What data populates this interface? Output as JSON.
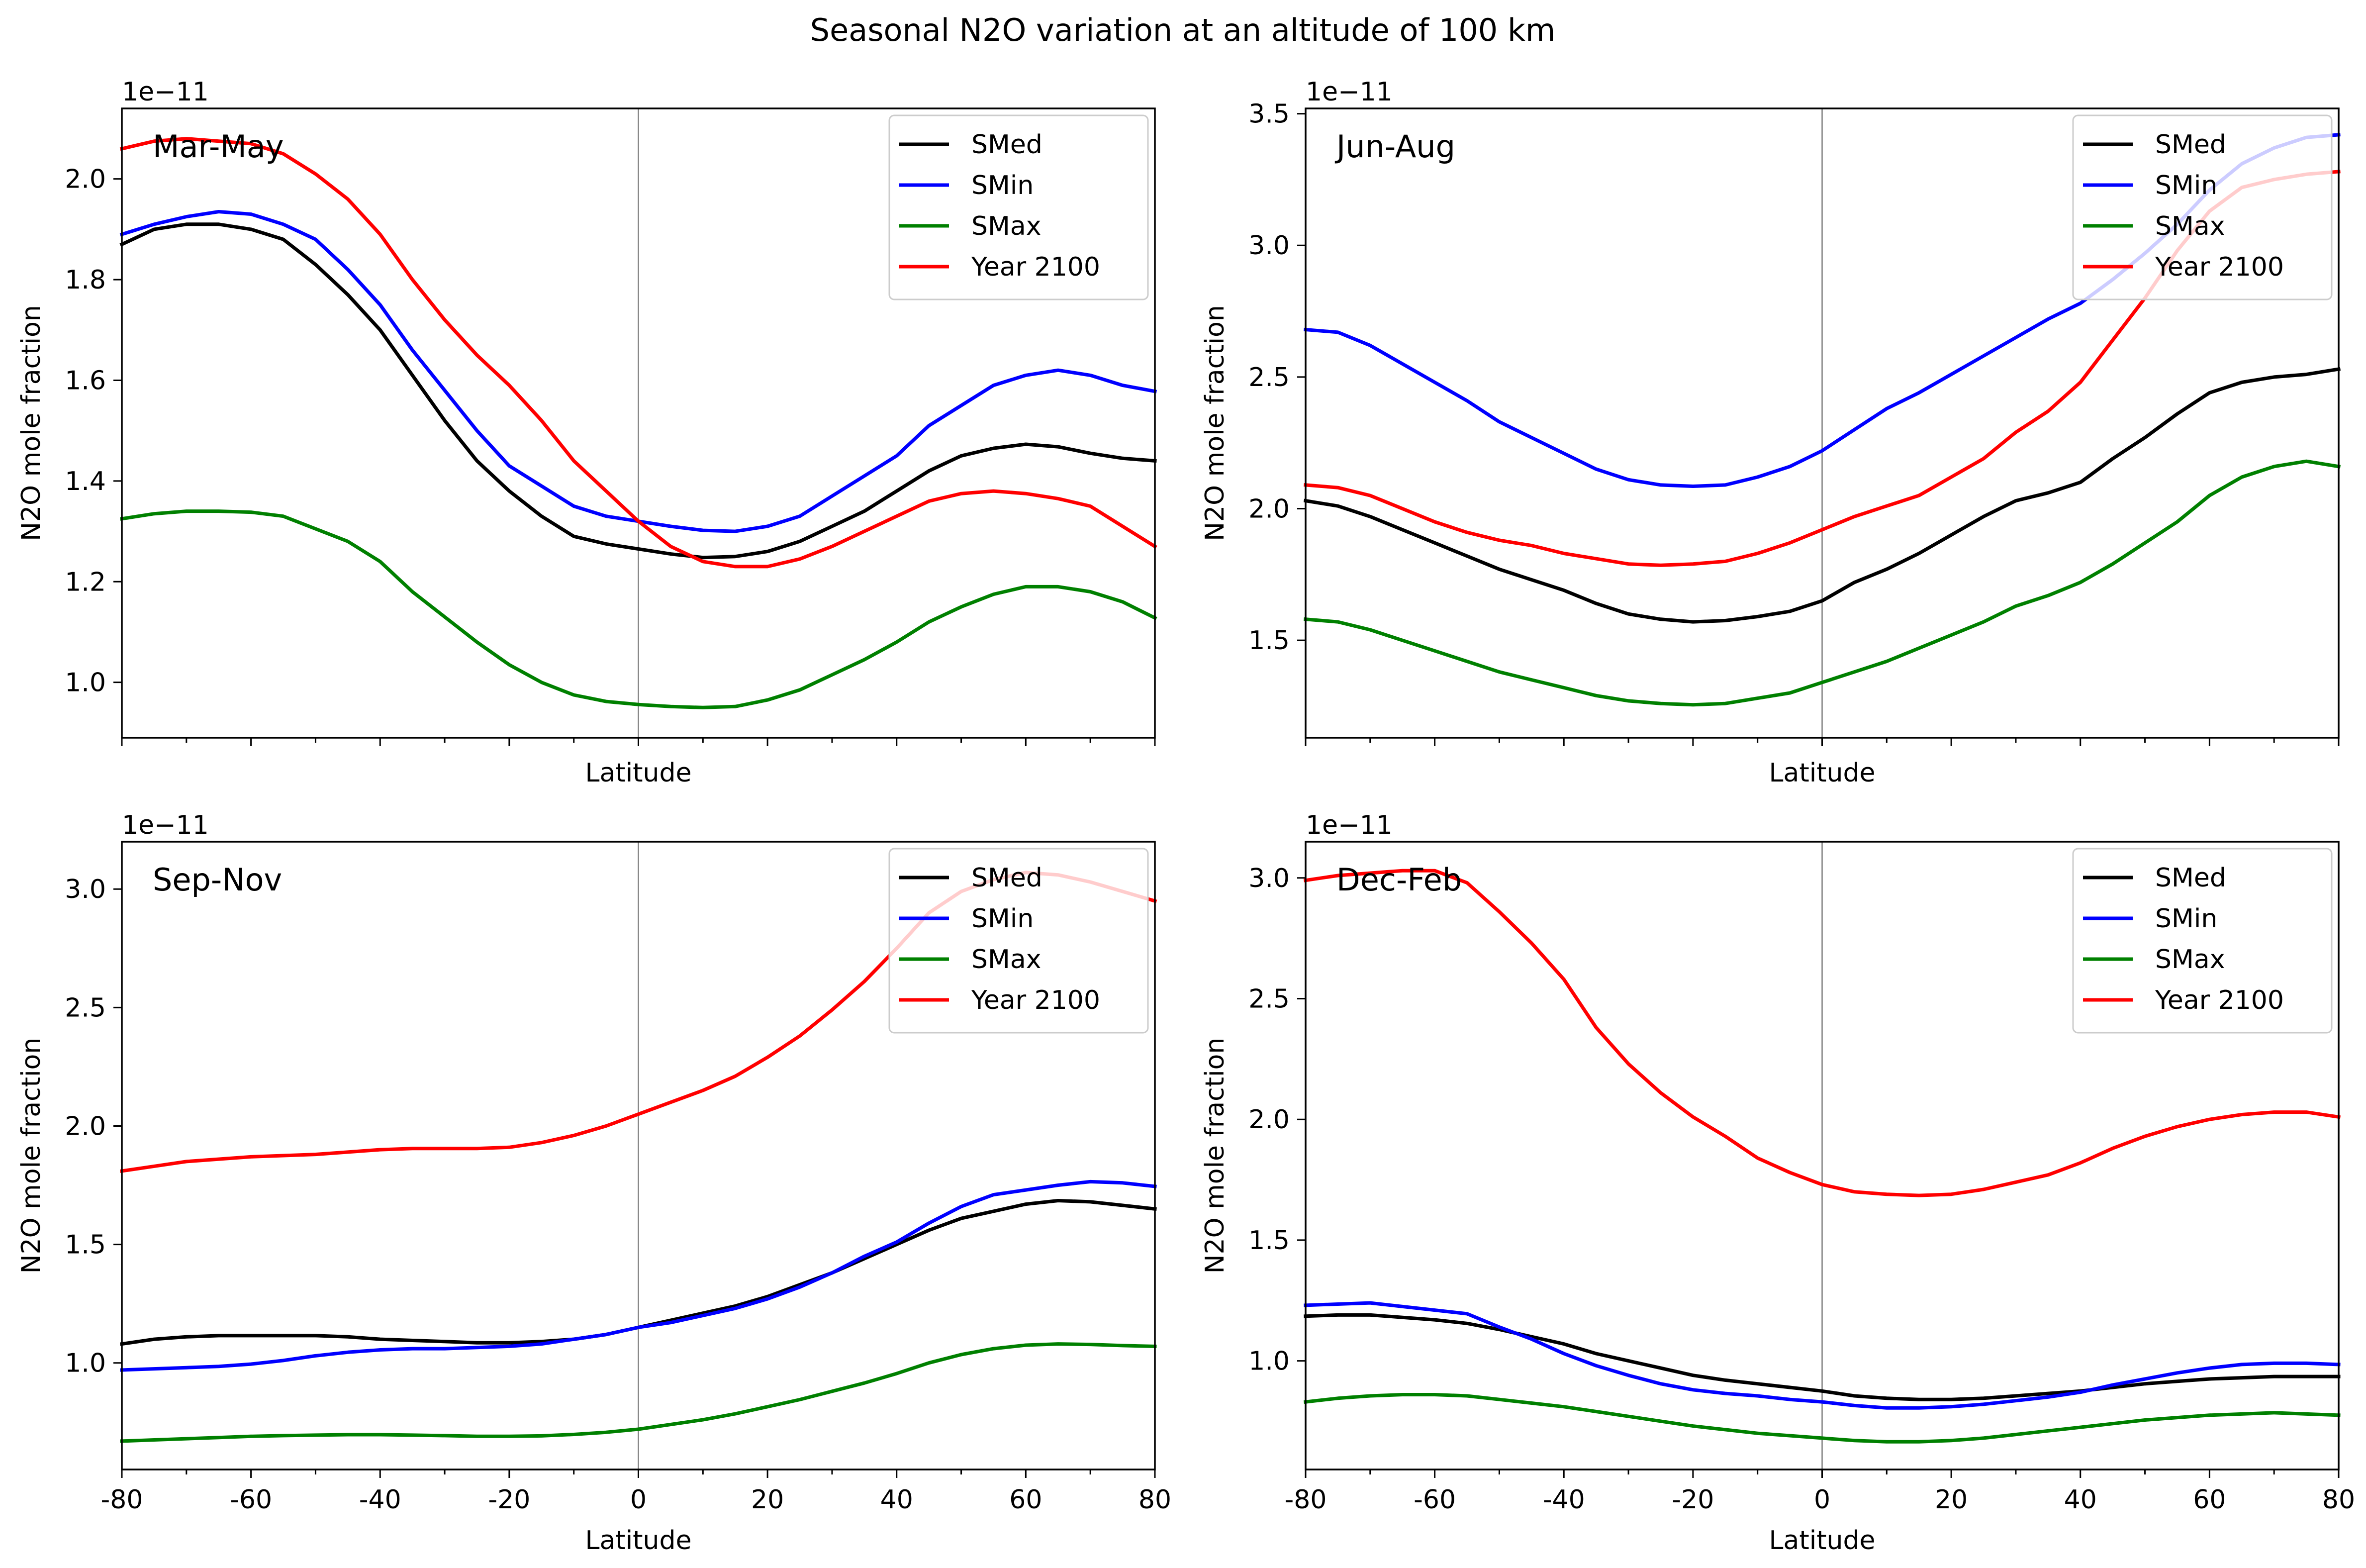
{
  "figure": {
    "title": "Seasonal N2O variation at an altitude of 100 km"
  },
  "chart_data": [
    {
      "type": "line",
      "panel_label": "Mar-May",
      "xlabel": "Latitude",
      "ylabel": "N2O mole fraction",
      "y_offset_text": "1e−11",
      "xlim": [
        -80,
        80
      ],
      "ylim": [
        0.89,
        2.14
      ],
      "yticks": [
        "1.0",
        "1.2",
        "1.4",
        "1.6",
        "1.8",
        "2.0"
      ],
      "ytick_values": [
        1.0,
        1.2,
        1.4,
        1.6,
        1.8,
        2.0
      ],
      "show_xtick_labels": false,
      "vertical_line_x": 0,
      "legend_position": "upper right",
      "x": [
        -80,
        -75,
        -70,
        -65,
        -60,
        -55,
        -50,
        -45,
        -40,
        -35,
        -30,
        -25,
        -20,
        -15,
        -10,
        -5,
        0,
        5,
        10,
        15,
        20,
        25,
        30,
        35,
        40,
        45,
        50,
        55,
        60,
        65,
        70,
        75,
        80
      ],
      "series": [
        {
          "name": "SMed",
          "color": "#000000",
          "values": [
            1.87,
            1.9,
            1.91,
            1.91,
            1.9,
            1.88,
            1.83,
            1.77,
            1.7,
            1.61,
            1.52,
            1.44,
            1.38,
            1.33,
            1.29,
            1.275,
            1.265,
            1.255,
            1.248,
            1.25,
            1.26,
            1.28,
            1.31,
            1.34,
            1.38,
            1.42,
            1.45,
            1.465,
            1.473,
            1.468,
            1.455,
            1.445,
            1.44
          ]
        },
        {
          "name": "SMin",
          "color": "#0000ff",
          "values": [
            1.89,
            1.91,
            1.925,
            1.935,
            1.93,
            1.91,
            1.88,
            1.82,
            1.75,
            1.66,
            1.58,
            1.5,
            1.43,
            1.39,
            1.35,
            1.33,
            1.32,
            1.31,
            1.302,
            1.3,
            1.31,
            1.33,
            1.37,
            1.41,
            1.45,
            1.51,
            1.55,
            1.59,
            1.61,
            1.62,
            1.61,
            1.59,
            1.578
          ]
        },
        {
          "name": "SMax",
          "color": "#008000",
          "values": [
            1.325,
            1.335,
            1.34,
            1.34,
            1.338,
            1.33,
            1.305,
            1.28,
            1.24,
            1.18,
            1.13,
            1.08,
            1.035,
            1.0,
            0.975,
            0.962,
            0.956,
            0.952,
            0.95,
            0.952,
            0.965,
            0.985,
            1.015,
            1.045,
            1.08,
            1.12,
            1.15,
            1.175,
            1.19,
            1.19,
            1.18,
            1.16,
            1.128
          ]
        },
        {
          "name": "Year 2100",
          "color": "#ff0000",
          "values": [
            2.06,
            2.075,
            2.08,
            2.075,
            2.07,
            2.05,
            2.01,
            1.96,
            1.89,
            1.8,
            1.72,
            1.65,
            1.59,
            1.52,
            1.44,
            1.38,
            1.32,
            1.27,
            1.24,
            1.23,
            1.23,
            1.245,
            1.27,
            1.3,
            1.33,
            1.36,
            1.375,
            1.38,
            1.375,
            1.365,
            1.35,
            1.31,
            1.27
          ]
        }
      ]
    },
    {
      "type": "line",
      "panel_label": "Jun-Aug",
      "xlabel": "Latitude",
      "ylabel": "N2O mole fraction",
      "y_offset_text": "1e−11",
      "xlim": [
        -80,
        80
      ],
      "ylim": [
        1.13,
        3.52
      ],
      "yticks": [
        "1.5",
        "2.0",
        "2.5",
        "3.0",
        "3.5"
      ],
      "ytick_values": [
        1.5,
        2.0,
        2.5,
        3.0,
        3.5
      ],
      "show_xtick_labels": false,
      "vertical_line_x": 0,
      "legend_position": "upper right",
      "x": [
        -80,
        -75,
        -70,
        -65,
        -60,
        -55,
        -50,
        -45,
        -40,
        -35,
        -30,
        -25,
        -20,
        -15,
        -10,
        -5,
        0,
        5,
        10,
        15,
        20,
        25,
        30,
        35,
        40,
        45,
        50,
        55,
        60,
        65,
        70,
        75,
        80
      ],
      "series": [
        {
          "name": "SMed",
          "color": "#000000",
          "values": [
            2.03,
            2.01,
            1.97,
            1.92,
            1.87,
            1.82,
            1.77,
            1.73,
            1.69,
            1.64,
            1.6,
            1.58,
            1.57,
            1.575,
            1.59,
            1.61,
            1.65,
            1.72,
            1.77,
            1.83,
            1.9,
            1.97,
            2.03,
            2.06,
            2.1,
            2.19,
            2.27,
            2.36,
            2.44,
            2.48,
            2.5,
            2.51,
            2.53
          ]
        },
        {
          "name": "SMin",
          "color": "#0000ff",
          "values": [
            2.68,
            2.67,
            2.62,
            2.55,
            2.48,
            2.41,
            2.33,
            2.27,
            2.21,
            2.15,
            2.11,
            2.09,
            2.085,
            2.09,
            2.12,
            2.16,
            2.22,
            2.3,
            2.38,
            2.44,
            2.51,
            2.58,
            2.65,
            2.72,
            2.78,
            2.87,
            2.97,
            3.08,
            3.21,
            3.31,
            3.37,
            3.41,
            3.42
          ]
        },
        {
          "name": "SMax",
          "color": "#008000",
          "values": [
            1.58,
            1.57,
            1.54,
            1.5,
            1.46,
            1.42,
            1.38,
            1.35,
            1.32,
            1.29,
            1.27,
            1.26,
            1.255,
            1.26,
            1.28,
            1.3,
            1.34,
            1.38,
            1.42,
            1.47,
            1.52,
            1.57,
            1.63,
            1.67,
            1.72,
            1.79,
            1.87,
            1.95,
            2.05,
            2.12,
            2.16,
            2.18,
            2.16
          ]
        },
        {
          "name": "Year 2100",
          "color": "#ff0000",
          "values": [
            2.09,
            2.08,
            2.05,
            2.0,
            1.95,
            1.91,
            1.88,
            1.86,
            1.83,
            1.81,
            1.79,
            1.785,
            1.79,
            1.8,
            1.83,
            1.87,
            1.92,
            1.97,
            2.01,
            2.05,
            2.12,
            2.19,
            2.29,
            2.37,
            2.48,
            2.64,
            2.8,
            2.98,
            3.13,
            3.22,
            3.25,
            3.27,
            3.28
          ]
        }
      ]
    },
    {
      "type": "line",
      "panel_label": "Sep-Nov",
      "xlabel": "Latitude",
      "ylabel": "N2O mole fraction",
      "y_offset_text": "1e−11",
      "xlim": [
        -80,
        80
      ],
      "ylim": [
        0.55,
        3.2
      ],
      "yticks": [
        "1.0",
        "1.5",
        "2.0",
        "2.5",
        "3.0"
      ],
      "ytick_values": [
        1.0,
        1.5,
        2.0,
        2.5,
        3.0
      ],
      "xticks": [
        "-80",
        "-60",
        "-40",
        "-20",
        "0",
        "20",
        "40",
        "60",
        "80"
      ],
      "xtick_values": [
        -80,
        -60,
        -40,
        -20,
        0,
        20,
        40,
        60,
        80
      ],
      "show_xtick_labels": true,
      "vertical_line_x": 0,
      "legend_position": "upper right",
      "x": [
        -80,
        -75,
        -70,
        -65,
        -60,
        -55,
        -50,
        -45,
        -40,
        -35,
        -30,
        -25,
        -20,
        -15,
        -10,
        -5,
        0,
        5,
        10,
        15,
        20,
        25,
        30,
        35,
        40,
        45,
        50,
        55,
        60,
        65,
        70,
        75,
        80
      ],
      "series": [
        {
          "name": "SMed",
          "color": "#000000",
          "values": [
            1.08,
            1.1,
            1.11,
            1.115,
            1.115,
            1.115,
            1.115,
            1.11,
            1.1,
            1.095,
            1.09,
            1.085,
            1.085,
            1.09,
            1.1,
            1.12,
            1.15,
            1.18,
            1.21,
            1.24,
            1.28,
            1.33,
            1.38,
            1.44,
            1.5,
            1.56,
            1.61,
            1.64,
            1.67,
            1.685,
            1.68,
            1.665,
            1.65
          ]
        },
        {
          "name": "SMin",
          "color": "#0000ff",
          "values": [
            0.97,
            0.975,
            0.98,
            0.985,
            0.995,
            1.01,
            1.03,
            1.045,
            1.055,
            1.06,
            1.06,
            1.065,
            1.07,
            1.08,
            1.1,
            1.12,
            1.15,
            1.17,
            1.2,
            1.23,
            1.27,
            1.32,
            1.38,
            1.45,
            1.51,
            1.59,
            1.66,
            1.71,
            1.73,
            1.75,
            1.765,
            1.76,
            1.745
          ]
        },
        {
          "name": "SMax",
          "color": "#008000",
          "values": [
            0.67,
            0.675,
            0.68,
            0.685,
            0.69,
            0.693,
            0.695,
            0.697,
            0.697,
            0.695,
            0.693,
            0.69,
            0.69,
            0.692,
            0.698,
            0.707,
            0.72,
            0.74,
            0.76,
            0.785,
            0.815,
            0.845,
            0.88,
            0.915,
            0.955,
            1.0,
            1.035,
            1.06,
            1.075,
            1.08,
            1.078,
            1.073,
            1.07
          ]
        },
        {
          "name": "Year 2100",
          "color": "#ff0000",
          "values": [
            1.81,
            1.83,
            1.85,
            1.86,
            1.87,
            1.875,
            1.88,
            1.89,
            1.9,
            1.905,
            1.905,
            1.905,
            1.91,
            1.93,
            1.96,
            2.0,
            2.05,
            2.1,
            2.15,
            2.21,
            2.29,
            2.38,
            2.49,
            2.61,
            2.75,
            2.9,
            2.99,
            3.04,
            3.07,
            3.06,
            3.03,
            2.99,
            2.95
          ]
        }
      ]
    },
    {
      "type": "line",
      "panel_label": "Dec-Feb",
      "xlabel": "Latitude",
      "ylabel": "N2O mole fraction",
      "y_offset_text": "1e−11",
      "xlim": [
        -80,
        80
      ],
      "ylim": [
        0.55,
        3.15
      ],
      "yticks": [
        "1.0",
        "1.5",
        "2.0",
        "2.5",
        "3.0"
      ],
      "ytick_values": [
        1.0,
        1.5,
        2.0,
        2.5,
        3.0
      ],
      "xticks": [
        "-80",
        "-60",
        "-40",
        "-20",
        "0",
        "20",
        "40",
        "60",
        "80"
      ],
      "xtick_values": [
        -80,
        -60,
        -40,
        -20,
        0,
        20,
        40,
        60,
        80
      ],
      "show_xtick_labels": true,
      "vertical_line_x": 0,
      "legend_position": "upper right",
      "x": [
        -80,
        -75,
        -70,
        -65,
        -60,
        -55,
        -50,
        -45,
        -40,
        -35,
        -30,
        -25,
        -20,
        -15,
        -10,
        -5,
        0,
        5,
        10,
        15,
        20,
        25,
        30,
        35,
        40,
        45,
        50,
        55,
        60,
        65,
        70,
        75,
        80
      ],
      "series": [
        {
          "name": "SMed",
          "color": "#000000",
          "values": [
            1.185,
            1.19,
            1.19,
            1.18,
            1.17,
            1.155,
            1.13,
            1.1,
            1.07,
            1.03,
            1.0,
            0.97,
            0.94,
            0.92,
            0.905,
            0.89,
            0.875,
            0.855,
            0.845,
            0.84,
            0.84,
            0.845,
            0.855,
            0.865,
            0.875,
            0.89,
            0.905,
            0.915,
            0.925,
            0.93,
            0.935,
            0.935,
            0.935
          ]
        },
        {
          "name": "SMin",
          "color": "#0000ff",
          "values": [
            1.23,
            1.235,
            1.24,
            1.225,
            1.21,
            1.195,
            1.14,
            1.09,
            1.03,
            0.98,
            0.94,
            0.905,
            0.88,
            0.865,
            0.855,
            0.84,
            0.83,
            0.815,
            0.805,
            0.805,
            0.81,
            0.82,
            0.835,
            0.85,
            0.87,
            0.9,
            0.925,
            0.95,
            0.97,
            0.985,
            0.99,
            0.99,
            0.985
          ]
        },
        {
          "name": "SMax",
          "color": "#008000",
          "values": [
            0.83,
            0.845,
            0.855,
            0.86,
            0.86,
            0.855,
            0.84,
            0.825,
            0.81,
            0.79,
            0.77,
            0.75,
            0.73,
            0.715,
            0.7,
            0.69,
            0.68,
            0.67,
            0.665,
            0.665,
            0.67,
            0.68,
            0.695,
            0.71,
            0.725,
            0.74,
            0.755,
            0.765,
            0.775,
            0.78,
            0.785,
            0.78,
            0.775
          ]
        },
        {
          "name": "Year 2100",
          "color": "#ff0000",
          "values": [
            2.99,
            3.01,
            3.02,
            3.03,
            3.03,
            2.98,
            2.86,
            2.73,
            2.58,
            2.38,
            2.23,
            2.11,
            2.01,
            1.93,
            1.84,
            1.78,
            1.73,
            1.7,
            1.69,
            1.685,
            1.69,
            1.71,
            1.74,
            1.77,
            1.82,
            1.88,
            1.93,
            1.97,
            2.0,
            2.02,
            2.03,
            2.03,
            2.01
          ]
        }
      ]
    }
  ]
}
